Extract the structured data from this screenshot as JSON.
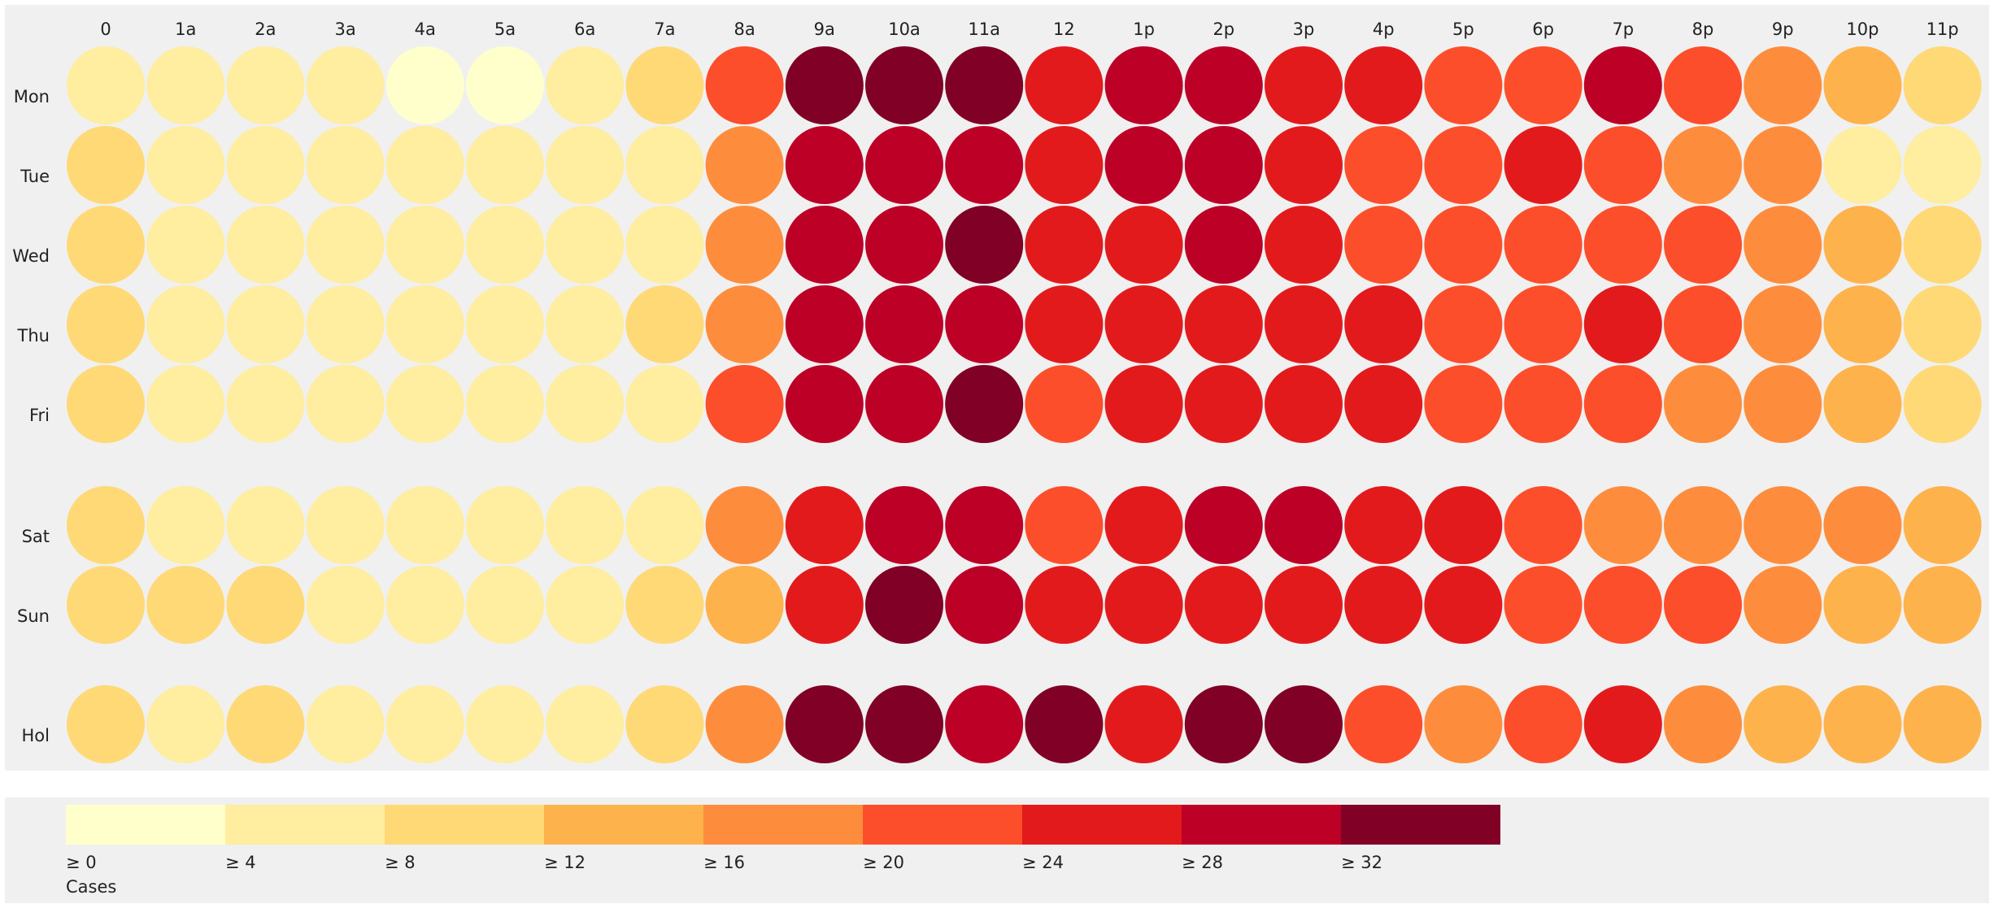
{
  "chart_data": {
    "type": "heatmap",
    "title": "",
    "xlabel": "",
    "ylabel": "",
    "grid": false,
    "legend_position": "bottom",
    "hours": [
      "0",
      "1a",
      "2a",
      "3a",
      "4a",
      "5a",
      "6a",
      "7a",
      "8a",
      "9a",
      "10a",
      "11a",
      "12",
      "1p",
      "2p",
      "3p",
      "4p",
      "5p",
      "6p",
      "7p",
      "8p",
      "9p",
      "10p",
      "11p"
    ],
    "days": [
      "Mon",
      "Tue",
      "Wed",
      "Thu",
      "Fri",
      "Sat",
      "Sun",
      "Hol"
    ],
    "series": [
      {
        "name": "Mon",
        "values": [
          6,
          6,
          6,
          6,
          2,
          2,
          6,
          10,
          22,
          34,
          34,
          34,
          26,
          30,
          30,
          26,
          26,
          22,
          22,
          30,
          22,
          18,
          14,
          10
        ]
      },
      {
        "name": "Tue",
        "values": [
          10,
          6,
          6,
          6,
          6,
          6,
          6,
          6,
          18,
          30,
          30,
          30,
          26,
          30,
          30,
          26,
          22,
          22,
          26,
          22,
          18,
          18,
          6,
          6
        ]
      },
      {
        "name": "Wed",
        "values": [
          10,
          6,
          6,
          6,
          6,
          6,
          6,
          6,
          18,
          30,
          30,
          34,
          26,
          26,
          30,
          26,
          22,
          22,
          22,
          22,
          22,
          18,
          14,
          10
        ]
      },
      {
        "name": "Thu",
        "values": [
          10,
          6,
          6,
          6,
          6,
          6,
          6,
          10,
          18,
          30,
          30,
          30,
          26,
          26,
          26,
          26,
          26,
          22,
          22,
          26,
          22,
          18,
          14,
          10
        ]
      },
      {
        "name": "Fri",
        "values": [
          10,
          6,
          6,
          6,
          6,
          6,
          6,
          6,
          22,
          30,
          30,
          34,
          22,
          26,
          26,
          26,
          26,
          22,
          22,
          22,
          18,
          18,
          14,
          10
        ]
      },
      {
        "name": "Sat",
        "values": [
          10,
          6,
          6,
          6,
          6,
          6,
          6,
          6,
          18,
          26,
          30,
          30,
          22,
          26,
          30,
          30,
          26,
          26,
          22,
          18,
          18,
          18,
          18,
          14
        ]
      },
      {
        "name": "Sun",
        "values": [
          10,
          10,
          10,
          6,
          6,
          6,
          6,
          10,
          14,
          26,
          34,
          30,
          26,
          26,
          26,
          26,
          26,
          26,
          22,
          22,
          22,
          18,
          14,
          14
        ]
      },
      {
        "name": "Hol",
        "values": [
          10,
          6,
          10,
          6,
          6,
          6,
          6,
          10,
          18,
          34,
          34,
          30,
          34,
          26,
          34,
          34,
          22,
          18,
          22,
          26,
          18,
          14,
          14,
          14
        ]
      }
    ],
    "legend": {
      "title": "Cases",
      "thresholds": [
        0,
        4,
        8,
        12,
        16,
        20,
        24,
        28,
        32
      ],
      "labels": [
        "≥ 0",
        "≥ 4",
        "≥ 8",
        "≥ 12",
        "≥ 16",
        "≥ 20",
        "≥ 24",
        "≥ 28",
        "≥ 32"
      ],
      "colors": [
        "#ffffcc",
        "#ffeda0",
        "#fed976",
        "#feb24c",
        "#fd8d3c",
        "#fc4e2a",
        "#e31a1c",
        "#bd0026",
        "#800026"
      ]
    }
  }
}
